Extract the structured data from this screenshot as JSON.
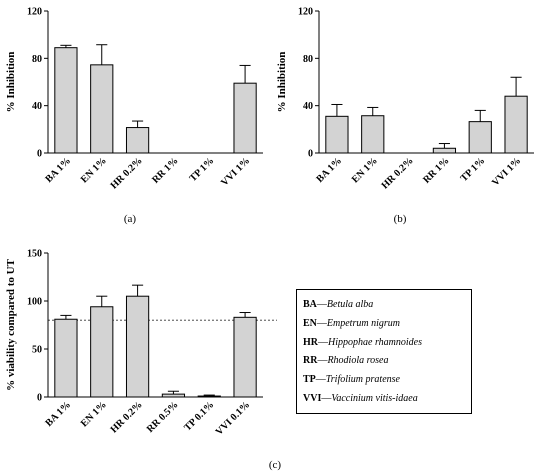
{
  "chart_data": [
    {
      "panel": "a",
      "type": "bar",
      "title": "",
      "xlabel": "",
      "ylabel": "% Inhibition",
      "ylim": [
        0,
        120
      ],
      "yticks": [
        0,
        40,
        80,
        120
      ],
      "categories": [
        "BA 1%",
        "EN 1%",
        "HR 0.2%",
        "RR 1%",
        "TP 1%",
        "VVI 1%"
      ],
      "values": [
        89,
        74.5,
        21.5,
        0,
        0,
        59
      ],
      "errors": [
        2,
        17,
        5.5,
        0,
        0,
        15
      ]
    },
    {
      "panel": "b",
      "type": "bar",
      "title": "",
      "xlabel": "",
      "ylabel": "% Inhibition",
      "ylim": [
        0,
        120
      ],
      "yticks": [
        0,
        40,
        80,
        120
      ],
      "categories": [
        "BA 1%",
        "EN 1%",
        "HR 0.2%",
        "RR 1%",
        "TP 1%",
        "VVI 1%"
      ],
      "values": [
        31,
        31.5,
        0,
        4,
        26.5,
        48
      ],
      "errors": [
        10,
        7,
        0,
        4,
        9.5,
        16
      ]
    },
    {
      "panel": "c",
      "type": "bar",
      "title": "",
      "xlabel": "",
      "ylabel": "% viability compared to UT",
      "ylim": [
        0,
        150
      ],
      "yticks": [
        0,
        50,
        100,
        150
      ],
      "reference_line": 80,
      "categories": [
        "BA 1%",
        "EN 1%",
        "HR 0.2%",
        "RR 0.5%",
        "TP 0.1%",
        "VVI 0.1%"
      ],
      "values": [
        81,
        94,
        105,
        3,
        1,
        83
      ],
      "errors": [
        4,
        11,
        11.5,
        3,
        1,
        5
      ]
    }
  ],
  "panel_labels": {
    "a": "(a)",
    "b": "(b)",
    "c": "(c)"
  },
  "legend": [
    {
      "abbr": "BA",
      "name": "Betula alba"
    },
    {
      "abbr": "EN",
      "name": "Empetrum nigrum"
    },
    {
      "abbr": "HR",
      "name": "Hippophae rhamnoides"
    },
    {
      "abbr": "RR",
      "name": "Rhodiola rosea"
    },
    {
      "abbr": "TP",
      "name": "Trifolium pratense"
    },
    {
      "abbr": "VVI",
      "name": "Vaccinium vitis-idaea"
    }
  ],
  "legend_separator": "—",
  "colors": {
    "bar_fill": "#d3d3d3",
    "bar_stroke": "#000000",
    "reference_line": "#333333"
  }
}
